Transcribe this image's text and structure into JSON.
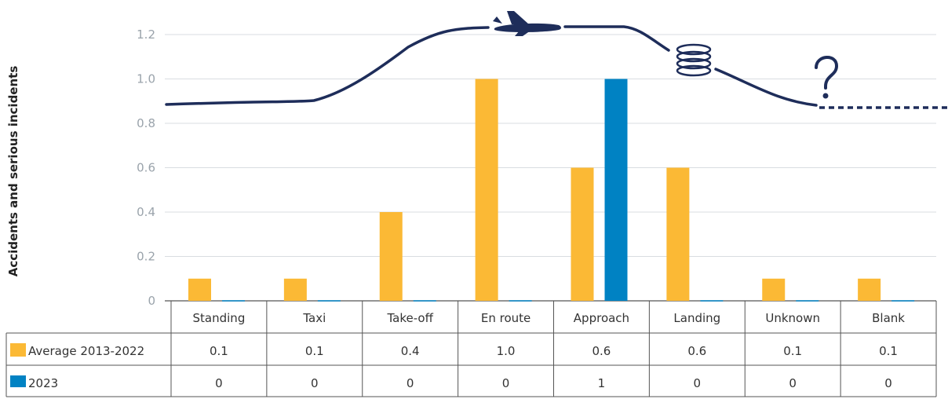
{
  "chart_data": {
    "type": "bar",
    "categories": [
      "Standing",
      "Taxi",
      "Take-off",
      "En route",
      "Approach",
      "Landing",
      "Unknown",
      "Blank"
    ],
    "series": [
      {
        "name": "Average 2013-2022",
        "values": [
          0.1,
          0.1,
          0.4,
          1.0,
          0.6,
          0.6,
          0.1,
          0.1
        ],
        "labels": [
          "0.1",
          "0.1",
          "0.4",
          "1.0",
          "0.6",
          "0.6",
          "0.1",
          "0.1"
        ],
        "color": "#fbb935"
      },
      {
        "name": "2023",
        "values": [
          0,
          0,
          0,
          0,
          1,
          0,
          0,
          0
        ],
        "labels": [
          "0",
          "0",
          "0",
          "0",
          "1",
          "0",
          "0",
          "0"
        ],
        "color": "#0082c3"
      }
    ],
    "yticks": [
      "0",
      "0.2",
      "0.4",
      "0.6",
      "0.8",
      "1.0",
      "1.2"
    ],
    "ylim": [
      0,
      1.2
    ],
    "ylabel": "Accidents and serious incidents",
    "grid": true,
    "legend": "data-table",
    "decoration_color": "#1e2d5a"
  }
}
